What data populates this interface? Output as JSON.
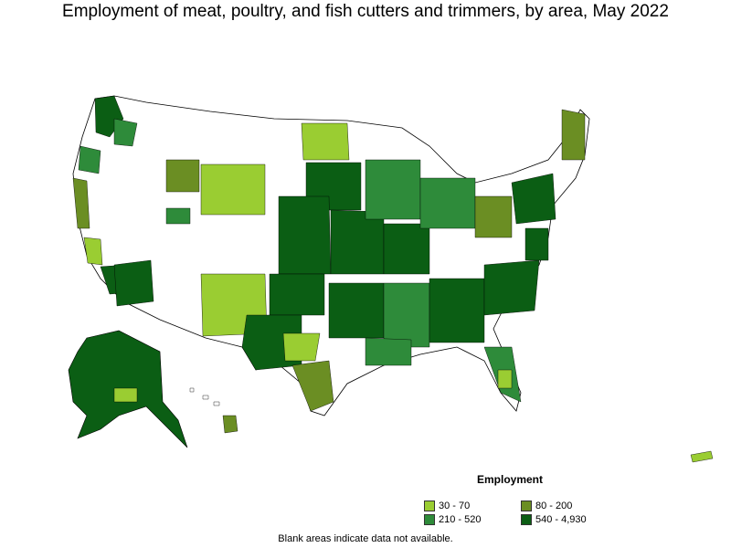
{
  "title": "Employment of meat, poultry, and fish cutters and trimmers, by area, May 2022",
  "legend": {
    "title": "Employment",
    "items": [
      {
        "label": "30 - 70",
        "color": "#9acd32"
      },
      {
        "label": "80 - 200",
        "color": "#6b8e23"
      },
      {
        "label": "210 - 520",
        "color": "#2e8b3a"
      },
      {
        "label": "540 - 4,930",
        "color": "#0b5e14"
      }
    ]
  },
  "note": "Blank areas indicate data not available.",
  "colors": {
    "no_data": "#ffffff",
    "border": "#000000"
  }
}
